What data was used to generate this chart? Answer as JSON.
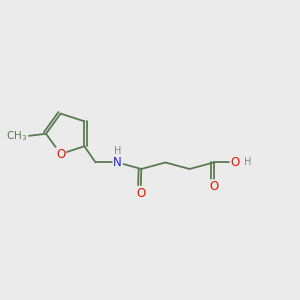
{
  "background_color": "#ebebeb",
  "bond_color": "#5a7a52",
  "atom_colors": {
    "O": "#ee1100",
    "N": "#2222dd",
    "H": "#888888"
  },
  "font_size_atoms": 8.5,
  "font_size_h": 7.0,
  "line_width": 1.3,
  "dbo": 0.09,
  "figsize": [
    3.0,
    3.0
  ],
  "dpi": 100,
  "xlim": [
    0,
    10
  ],
  "ylim": [
    0,
    10
  ]
}
